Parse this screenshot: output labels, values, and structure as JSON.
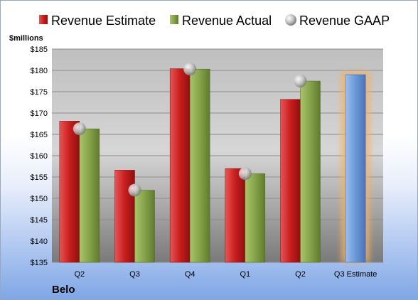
{
  "company": "Belo",
  "colors": {
    "estimate": "#d42a2a",
    "actual": "#8aa84d",
    "gaap": "#c0c0c0",
    "forecast": "#6a98d8",
    "forecast_glow": "#f5b060"
  },
  "chart_data": {
    "type": "bar",
    "ylabel": "$millions",
    "ylim": [
      135,
      185
    ],
    "ytick_step": 5,
    "ytick_prefix": "$",
    "categories": [
      "Q2",
      "Q3",
      "Q4",
      "Q1",
      "Q2",
      "Q3 Estimate"
    ],
    "series": [
      {
        "name": "Revenue Estimate",
        "values": [
          168.1,
          156.6,
          180.4,
          157.0,
          173.2,
          null
        ]
      },
      {
        "name": "Revenue Actual",
        "values": [
          166.3,
          151.9,
          180.3,
          155.8,
          177.5,
          179.0
        ]
      },
      {
        "name": "Revenue GAAP",
        "values": [
          166.3,
          151.9,
          180.3,
          155.8,
          177.5,
          null
        ]
      }
    ],
    "legend": "top"
  }
}
